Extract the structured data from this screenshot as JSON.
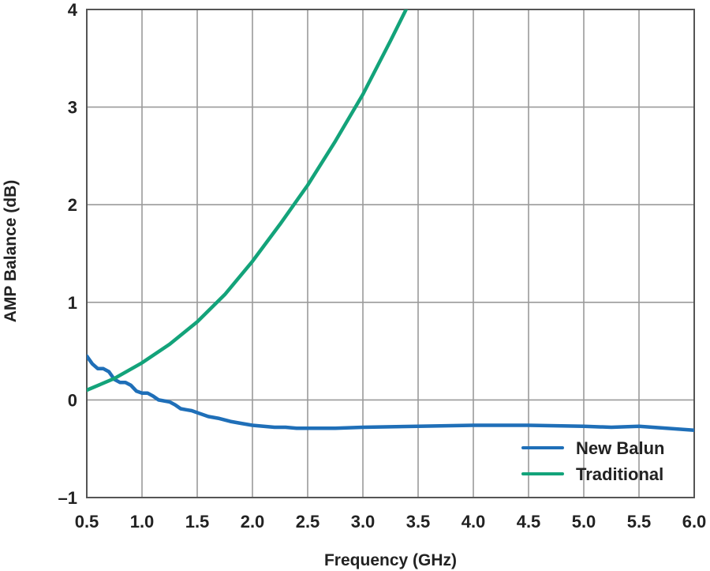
{
  "chart_data": {
    "type": "line",
    "xlabel": "Frequency (GHz)",
    "ylabel": "AMP Balance (dB)",
    "xlim": [
      0.5,
      6.0
    ],
    "ylim": [
      -1,
      4
    ],
    "xticks": [
      "0.5",
      "1.0",
      "1.5",
      "2.0",
      "2.5",
      "3.0",
      "3.5",
      "4.0",
      "4.5",
      "5.0",
      "5.5",
      "6.0"
    ],
    "yticks": [
      "4",
      "3",
      "2",
      "1",
      "0",
      "–1"
    ],
    "grid": true,
    "legend_position": "bottom-right",
    "series": [
      {
        "name": "New Balun",
        "color": "#1f6fb8",
        "x": [
          0.5,
          0.55,
          0.6,
          0.65,
          0.7,
          0.75,
          0.8,
          0.85,
          0.9,
          0.95,
          1.0,
          1.05,
          1.1,
          1.15,
          1.2,
          1.25,
          1.3,
          1.35,
          1.4,
          1.45,
          1.5,
          1.6,
          1.7,
          1.8,
          1.9,
          2.0,
          2.1,
          2.2,
          2.3,
          2.4,
          2.5,
          2.75,
          3.0,
          3.5,
          4.0,
          4.5,
          5.0,
          5.25,
          5.5,
          5.75,
          6.0
        ],
        "y": [
          0.45,
          0.37,
          0.32,
          0.32,
          0.29,
          0.21,
          0.18,
          0.18,
          0.15,
          0.09,
          0.07,
          0.07,
          0.04,
          0.0,
          -0.01,
          -0.02,
          -0.05,
          -0.09,
          -0.1,
          -0.11,
          -0.13,
          -0.17,
          -0.19,
          -0.22,
          -0.24,
          -0.26,
          -0.27,
          -0.28,
          -0.28,
          -0.29,
          -0.29,
          -0.29,
          -0.28,
          -0.27,
          -0.26,
          -0.26,
          -0.27,
          -0.28,
          -0.27,
          -0.29,
          -0.31
        ]
      },
      {
        "name": "Traditional",
        "color": "#13a37a",
        "x": [
          0.5,
          0.75,
          1.0,
          1.25,
          1.5,
          1.75,
          2.0,
          2.25,
          2.5,
          2.75,
          3.0,
          3.25,
          3.4
        ],
        "y": [
          0.1,
          0.22,
          0.38,
          0.57,
          0.8,
          1.08,
          1.42,
          1.8,
          2.2,
          2.65,
          3.13,
          3.68,
          4.02
        ]
      }
    ]
  }
}
